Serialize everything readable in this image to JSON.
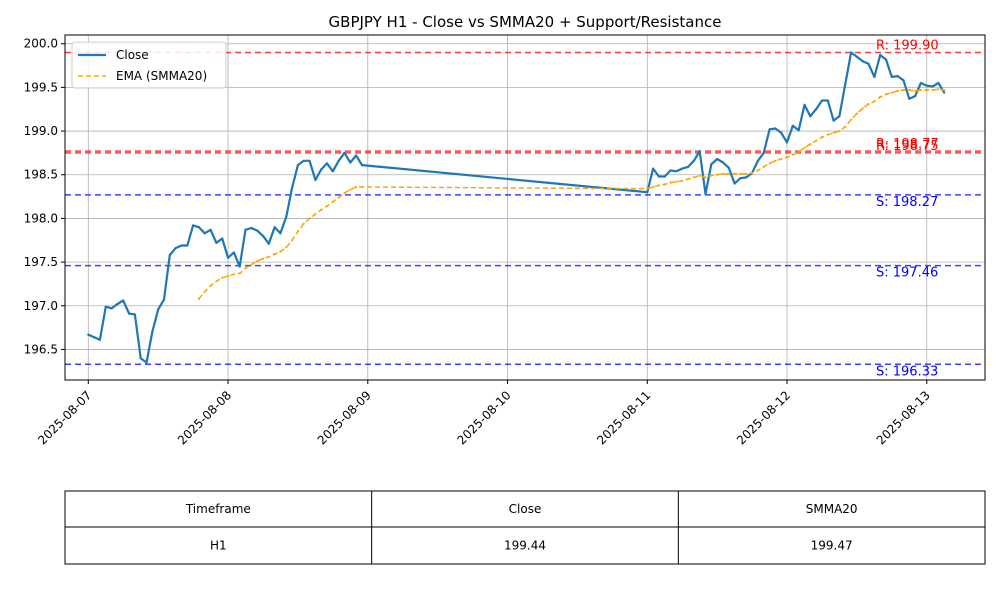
{
  "chart_data": {
    "type": "line",
    "title": "GBPJPY H1 - Close vs SMMA20 + Support/Resistance",
    "xlabel": "",
    "ylabel": "",
    "ylim": [
      196.15,
      200.1
    ],
    "xlim": [
      "2025-08-06 20:00",
      "2025-08-13 10:00"
    ],
    "grid": true,
    "legend_position": "top-left",
    "x_ticks": [
      "2025-08-07",
      "2025-08-08",
      "2025-08-09",
      "2025-08-10",
      "2025-08-11",
      "2025-08-12",
      "2025-08-13"
    ],
    "y_ticks": [
      "196.5",
      "197.0",
      "197.5",
      "198.0",
      "198.5",
      "199.0",
      "199.5",
      "200.0"
    ],
    "series": [
      {
        "name": "Close",
        "color": "#1f77b4",
        "style": "solid",
        "points": [
          [
            "2025-08-07 00:00",
            196.67
          ],
          [
            "2025-08-07 01:00",
            196.64
          ],
          [
            "2025-08-07 02:00",
            196.61
          ],
          [
            "2025-08-07 03:00",
            196.99
          ],
          [
            "2025-08-07 04:00",
            196.97
          ],
          [
            "2025-08-07 05:00",
            197.02
          ],
          [
            "2025-08-07 06:00",
            197.06
          ],
          [
            "2025-08-07 07:00",
            196.91
          ],
          [
            "2025-08-07 08:00",
            196.9
          ],
          [
            "2025-08-07 09:00",
            196.4
          ],
          [
            "2025-08-07 10:00",
            196.35
          ],
          [
            "2025-08-07 11:00",
            196.7
          ],
          [
            "2025-08-07 12:00",
            196.96
          ],
          [
            "2025-08-07 13:00",
            197.07
          ],
          [
            "2025-08-07 14:00",
            197.58
          ],
          [
            "2025-08-07 15:00",
            197.66
          ],
          [
            "2025-08-07 16:00",
            197.69
          ],
          [
            "2025-08-07 17:00",
            197.69
          ],
          [
            "2025-08-07 18:00",
            197.92
          ],
          [
            "2025-08-07 19:00",
            197.9
          ],
          [
            "2025-08-07 20:00",
            197.83
          ],
          [
            "2025-08-07 21:00",
            197.87
          ],
          [
            "2025-08-07 22:00",
            197.72
          ],
          [
            "2025-08-07 23:00",
            197.77
          ],
          [
            "2025-08-08 00:00",
            197.55
          ],
          [
            "2025-08-08 01:00",
            197.61
          ],
          [
            "2025-08-08 02:00",
            197.45
          ],
          [
            "2025-08-08 03:00",
            197.87
          ],
          [
            "2025-08-08 04:00",
            197.89
          ],
          [
            "2025-08-08 05:00",
            197.86
          ],
          [
            "2025-08-08 06:00",
            197.8
          ],
          [
            "2025-08-08 07:00",
            197.71
          ],
          [
            "2025-08-08 08:00",
            197.9
          ],
          [
            "2025-08-08 09:00",
            197.83
          ],
          [
            "2025-08-08 10:00",
            198.02
          ],
          [
            "2025-08-08 11:00",
            198.35
          ],
          [
            "2025-08-08 12:00",
            198.61
          ],
          [
            "2025-08-08 13:00",
            198.66
          ],
          [
            "2025-08-08 14:00",
            198.66
          ],
          [
            "2025-08-08 15:00",
            198.44
          ],
          [
            "2025-08-08 16:00",
            198.56
          ],
          [
            "2025-08-08 17:00",
            198.63
          ],
          [
            "2025-08-08 18:00",
            198.54
          ],
          [
            "2025-08-08 19:00",
            198.66
          ],
          [
            "2025-08-08 20:00",
            198.75
          ],
          [
            "2025-08-08 21:00",
            198.64
          ],
          [
            "2025-08-08 22:00",
            198.72
          ],
          [
            "2025-08-08 23:00",
            198.61
          ],
          [
            "2025-08-11 00:00",
            198.3
          ],
          [
            "2025-08-11 01:00",
            198.57
          ],
          [
            "2025-08-11 02:00",
            198.48
          ],
          [
            "2025-08-11 03:00",
            198.48
          ],
          [
            "2025-08-11 04:00",
            198.55
          ],
          [
            "2025-08-11 05:00",
            198.54
          ],
          [
            "2025-08-11 06:00",
            198.57
          ],
          [
            "2025-08-11 07:00",
            198.59
          ],
          [
            "2025-08-11 08:00",
            198.66
          ],
          [
            "2025-08-11 09:00",
            198.77
          ],
          [
            "2025-08-11 10:00",
            198.28
          ],
          [
            "2025-08-11 11:00",
            198.62
          ],
          [
            "2025-08-11 12:00",
            198.68
          ],
          [
            "2025-08-11 13:00",
            198.64
          ],
          [
            "2025-08-11 14:00",
            198.58
          ],
          [
            "2025-08-11 15:00",
            198.4
          ],
          [
            "2025-08-11 16:00",
            198.46
          ],
          [
            "2025-08-11 17:00",
            198.47
          ],
          [
            "2025-08-11 18:00",
            198.52
          ],
          [
            "2025-08-11 19:00",
            198.66
          ],
          [
            "2025-08-11 20:00",
            198.75
          ],
          [
            "2025-08-11 21:00",
            199.02
          ],
          [
            "2025-08-11 22:00",
            199.03
          ],
          [
            "2025-08-11 23:00",
            198.98
          ],
          [
            "2025-08-12 00:00",
            198.87
          ],
          [
            "2025-08-12 01:00",
            199.06
          ],
          [
            "2025-08-12 02:00",
            199.01
          ],
          [
            "2025-08-12 03:00",
            199.3
          ],
          [
            "2025-08-12 04:00",
            199.17
          ],
          [
            "2025-08-12 05:00",
            199.25
          ],
          [
            "2025-08-12 06:00",
            199.35
          ],
          [
            "2025-08-12 07:00",
            199.35
          ],
          [
            "2025-08-12 08:00",
            199.12
          ],
          [
            "2025-08-12 09:00",
            199.17
          ],
          [
            "2025-08-12 10:00",
            199.54
          ],
          [
            "2025-08-12 11:00",
            199.9
          ],
          [
            "2025-08-12 12:00",
            199.85
          ],
          [
            "2025-08-12 13:00",
            199.8
          ],
          [
            "2025-08-12 14:00",
            199.77
          ],
          [
            "2025-08-12 15:00",
            199.62
          ],
          [
            "2025-08-12 16:00",
            199.87
          ],
          [
            "2025-08-12 17:00",
            199.82
          ],
          [
            "2025-08-12 18:00",
            199.62
          ],
          [
            "2025-08-12 19:00",
            199.63
          ],
          [
            "2025-08-12 20:00",
            199.58
          ],
          [
            "2025-08-12 21:00",
            199.37
          ],
          [
            "2025-08-12 22:00",
            199.4
          ],
          [
            "2025-08-12 23:00",
            199.55
          ],
          [
            "2025-08-13 00:00",
            199.52
          ],
          [
            "2025-08-13 01:00",
            199.51
          ],
          [
            "2025-08-13 02:00",
            199.55
          ],
          [
            "2025-08-13 03:00",
            199.44
          ]
        ]
      },
      {
        "name": "EMA (SMMA20)",
        "color": "#ffa500",
        "style": "dashed",
        "points": [
          [
            "2025-08-07 19:00",
            197.08
          ],
          [
            "2025-08-07 20:00",
            197.16
          ],
          [
            "2025-08-07 21:00",
            197.23
          ],
          [
            "2025-08-07 22:00",
            197.28
          ],
          [
            "2025-08-07 23:00",
            197.32
          ],
          [
            "2025-08-08 00:00",
            197.34
          ],
          [
            "2025-08-08 01:00",
            197.36
          ],
          [
            "2025-08-08 02:00",
            197.37
          ],
          [
            "2025-08-08 03:00",
            197.43
          ],
          [
            "2025-08-08 04:00",
            197.47
          ],
          [
            "2025-08-08 05:00",
            197.51
          ],
          [
            "2025-08-08 06:00",
            197.54
          ],
          [
            "2025-08-08 07:00",
            197.56
          ],
          [
            "2025-08-08 08:00",
            197.59
          ],
          [
            "2025-08-08 09:00",
            197.62
          ],
          [
            "2025-08-08 10:00",
            197.67
          ],
          [
            "2025-08-08 11:00",
            197.75
          ],
          [
            "2025-08-08 12:00",
            197.85
          ],
          [
            "2025-08-08 13:00",
            197.94
          ],
          [
            "2025-08-08 14:00",
            198.0
          ],
          [
            "2025-08-08 15:00",
            198.05
          ],
          [
            "2025-08-08 16:00",
            198.1
          ],
          [
            "2025-08-08 17:00",
            198.14
          ],
          [
            "2025-08-08 18:00",
            198.19
          ],
          [
            "2025-08-08 19:00",
            198.24
          ],
          [
            "2025-08-08 20:00",
            198.29
          ],
          [
            "2025-08-08 21:00",
            198.33
          ],
          [
            "2025-08-08 22:00",
            198.36
          ],
          [
            "2025-08-08 23:00",
            198.36
          ],
          [
            "2025-08-11 00:00",
            198.34
          ],
          [
            "2025-08-11 01:00",
            198.36
          ],
          [
            "2025-08-11 02:00",
            198.38
          ],
          [
            "2025-08-11 03:00",
            198.39
          ],
          [
            "2025-08-11 04:00",
            198.41
          ],
          [
            "2025-08-11 05:00",
            198.42
          ],
          [
            "2025-08-11 06:00",
            198.43
          ],
          [
            "2025-08-11 07:00",
            198.45
          ],
          [
            "2025-08-11 08:00",
            198.47
          ],
          [
            "2025-08-11 09:00",
            198.49
          ],
          [
            "2025-08-11 10:00",
            198.47
          ],
          [
            "2025-08-11 11:00",
            198.49
          ],
          [
            "2025-08-11 12:00",
            198.5
          ],
          [
            "2025-08-11 13:00",
            198.51
          ],
          [
            "2025-08-11 14:00",
            198.51
          ],
          [
            "2025-08-11 15:00",
            198.51
          ],
          [
            "2025-08-11 16:00",
            198.51
          ],
          [
            "2025-08-11 17:00",
            198.51
          ],
          [
            "2025-08-11 18:00",
            198.52
          ],
          [
            "2025-08-11 19:00",
            198.55
          ],
          [
            "2025-08-11 20:00",
            198.59
          ],
          [
            "2025-08-11 21:00",
            198.63
          ],
          [
            "2025-08-11 22:00",
            198.66
          ],
          [
            "2025-08-11 23:00",
            198.68
          ],
          [
            "2025-08-12 00:00",
            198.7
          ],
          [
            "2025-08-12 01:00",
            198.73
          ],
          [
            "2025-08-12 02:00",
            198.76
          ],
          [
            "2025-08-12 03:00",
            198.81
          ],
          [
            "2025-08-12 04:00",
            198.85
          ],
          [
            "2025-08-12 05:00",
            198.89
          ],
          [
            "2025-08-12 06:00",
            198.93
          ],
          [
            "2025-08-12 07:00",
            198.96
          ],
          [
            "2025-08-12 08:00",
            198.98
          ],
          [
            "2025-08-12 09:00",
            199.0
          ],
          [
            "2025-08-12 10:00",
            199.05
          ],
          [
            "2025-08-12 11:00",
            199.13
          ],
          [
            "2025-08-12 12:00",
            199.2
          ],
          [
            "2025-08-12 13:00",
            199.26
          ],
          [
            "2025-08-12 14:00",
            199.31
          ],
          [
            "2025-08-12 15:00",
            199.34
          ],
          [
            "2025-08-12 16:00",
            199.39
          ],
          [
            "2025-08-12 17:00",
            199.42
          ],
          [
            "2025-08-12 18:00",
            199.44
          ],
          [
            "2025-08-12 19:00",
            199.46
          ],
          [
            "2025-08-12 20:00",
            199.47
          ],
          [
            "2025-08-12 21:00",
            199.47
          ],
          [
            "2025-08-12 22:00",
            199.46
          ],
          [
            "2025-08-12 23:00",
            199.47
          ],
          [
            "2025-08-13 00:00",
            199.47
          ],
          [
            "2025-08-13 01:00",
            199.47
          ],
          [
            "2025-08-13 02:00",
            199.48
          ],
          [
            "2025-08-13 03:00",
            199.47
          ]
        ]
      }
    ],
    "levels": [
      {
        "kind": "resistance",
        "value": 199.9,
        "label": "R: 199.90",
        "color": "#ff0000"
      },
      {
        "kind": "resistance",
        "value": 198.77,
        "label": "R: 198.77",
        "color": "#ff0000"
      },
      {
        "kind": "resistance",
        "value": 198.75,
        "label": "R: 198.75",
        "color": "#ff0000"
      },
      {
        "kind": "support",
        "value": 198.27,
        "label": "S: 198.27",
        "color": "#0000ff"
      },
      {
        "kind": "support",
        "value": 197.46,
        "label": "S: 197.46",
        "color": "#0000ff"
      },
      {
        "kind": "support",
        "value": 196.33,
        "label": "S: 196.33",
        "color": "#0000ff"
      }
    ]
  },
  "table": {
    "headers": [
      "Timeframe",
      "Close",
      "SMMA20"
    ],
    "rows": [
      [
        "H1",
        "199.44",
        "199.47"
      ]
    ]
  }
}
